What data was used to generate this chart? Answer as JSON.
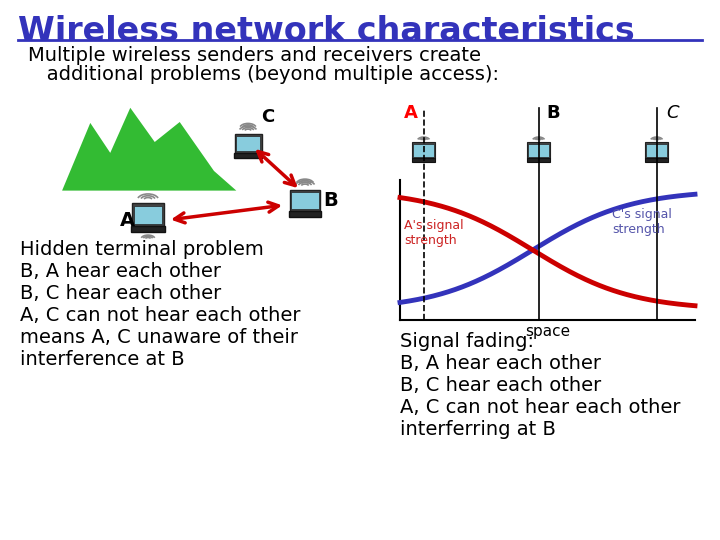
{
  "title": "Wireless network characteristics",
  "title_color": "#3333BB",
  "title_fontsize": 24,
  "subtitle_line1": "Multiple wireless senders and receivers create",
  "subtitle_line2": "   additional problems (beyond multiple access):",
  "subtitle_fontsize": 14,
  "bg_color": "#FFFFFF",
  "left_text_lines": [
    "Hidden terminal problem",
    "B, A hear each other",
    "B, C hear each other",
    "A, C can not hear each other",
    "means A, C unaware of their",
    "interference at B"
  ],
  "right_text_lines": [
    "Signal fading:",
    "B, A hear each other",
    "B, C hear each other",
    "A, C can not hear each other",
    "interferring at B"
  ],
  "curve_red_color": "#CC0000",
  "curve_blue_color": "#3333BB",
  "text_fontsize": 14,
  "space_label": "space",
  "as_signal_label": "A's signal\nstrength",
  "cs_signal_label": "C's signal\nstrength",
  "mountain_color": "#33BB33",
  "mountain_edge_color": "#FFFFFF",
  "laptop_screen_color": "#88CCDD",
  "laptop_body_color": "#333333",
  "arrow_color": "#CC0000",
  "wire_signal_color": "#888888"
}
